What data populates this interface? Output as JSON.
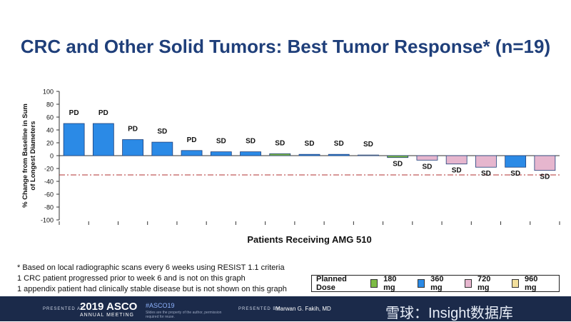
{
  "title": "CRC and Other Solid Tumors: Best Tumor Response* (n=19)",
  "chart_data": {
    "type": "bar",
    "title": "CRC and Other Solid Tumors: Best Tumor Response* (n=19)",
    "xlabel": "Patients Receiving AMG 510",
    "ylabel_lines": [
      "% Change from Baseline in Sum",
      "of Longest Diameters"
    ],
    "ylim": [
      -100,
      100
    ],
    "yticks": [
      100,
      80,
      60,
      40,
      20,
      0,
      -20,
      -40,
      -60,
      -80,
      -100
    ],
    "reference_line": -30,
    "bars": [
      {
        "value": 50,
        "label": "PD",
        "dose": "360 mg"
      },
      {
        "value": 50,
        "label": "PD",
        "dose": "360 mg"
      },
      {
        "value": 25,
        "label": "PD",
        "dose": "360 mg"
      },
      {
        "value": 21,
        "label": "SD",
        "dose": "360 mg"
      },
      {
        "value": 8,
        "label": "PD",
        "dose": "360 mg"
      },
      {
        "value": 6,
        "label": "SD",
        "dose": "360 mg"
      },
      {
        "value": 6,
        "label": "SD",
        "dose": "360 mg"
      },
      {
        "value": 3,
        "label": "SD",
        "dose": "180 mg"
      },
      {
        "value": 2,
        "label": "SD",
        "dose": "360 mg"
      },
      {
        "value": 2,
        "label": "SD",
        "dose": "360 mg"
      },
      {
        "value": 1,
        "label": "SD",
        "dose": "960 mg"
      },
      {
        "value": -3,
        "label": "SD",
        "dose": "180 mg"
      },
      {
        "value": -7,
        "label": "SD",
        "dose": "720 mg"
      },
      {
        "value": -13,
        "label": "SD",
        "dose": "720 mg"
      },
      {
        "value": -18,
        "label": "SD",
        "dose": "720 mg"
      },
      {
        "value": -18,
        "label": "SD",
        "dose": "360 mg"
      },
      {
        "value": -23,
        "label": "SD",
        "dose": "720 mg"
      }
    ],
    "legend": {
      "title": "Planned Dose",
      "items": [
        {
          "label": "180 mg",
          "color": "#7dbb46"
        },
        {
          "label": "360 mg",
          "color": "#2b8ae6"
        },
        {
          "label": "720 mg",
          "color": "#e6b6ce"
        },
        {
          "label": "960 mg",
          "color": "#f2df9c"
        }
      ]
    }
  },
  "footnotes": [
    "* Based on local radiographic scans every 6 weeks using RESIST 1.1 criteria",
    "1 CRC patient progressed prior to week 6 and is not on this graph",
    "1 appendix patient had clinically stable disease but is not shown on this graph"
  ],
  "footer": {
    "presented_at": "PRESENTED AT:",
    "conference": "2019 ASCO",
    "meeting": "ANNUAL MEETING",
    "hashtag": "#ASCO19",
    "slides_note": "Slides are the property of the author, permission required for reuse.",
    "presented_by": "PRESENTED BY:",
    "presenter": "Marwan G. Fakih, MD",
    "watermark": "雪球：Insight数据库"
  }
}
